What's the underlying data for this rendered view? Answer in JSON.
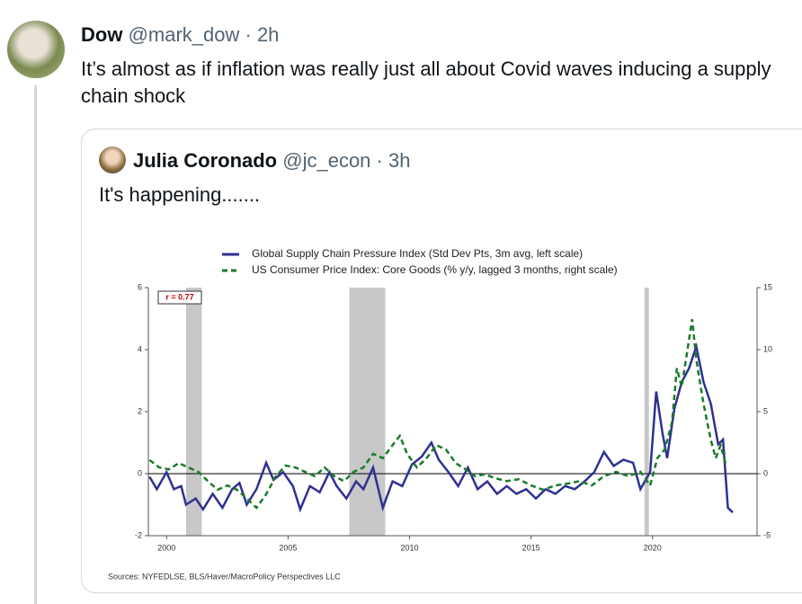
{
  "tweet": {
    "name": "Dow",
    "handle": "@mark_dow · 2h",
    "text": "It’s almost as if inflation was really just all about Covid waves inducing a supply chain shock"
  },
  "quote": {
    "name": "Julia Coronado",
    "handle": "@jc_econ · 3h",
    "text": "It's happening......."
  },
  "chart_data": {
    "type": "line",
    "annotation": "r = 0.77",
    "source": "Sources:  NYFEDLSE, BLS/Haver/MacroPolicy Perspectives LLC",
    "xlim": [
      1999.25,
      2024.3
    ],
    "xticks": [
      2000,
      2005,
      2010,
      2015,
      2020
    ],
    "ylim": [
      -2,
      6
    ],
    "yticks": [
      -2,
      0,
      2,
      4,
      6
    ],
    "y2lim": [
      -5,
      15
    ],
    "y2ticks": [
      -5,
      0,
      5,
      10,
      15
    ],
    "recessions": [
      [
        2000.8,
        2001.45
      ],
      [
        2007.52,
        2009.0
      ],
      [
        2019.67,
        2019.85
      ]
    ],
    "series": [
      {
        "name": "Global Supply Chain Pressure Index (Std Dev Pts, 3m avg, left scale)",
        "color": "#2e3192",
        "axis": "y",
        "x": [
          1999.3,
          1999.6,
          2000.0,
          2000.3,
          2000.6,
          2000.8,
          2001.2,
          2001.5,
          2001.9,
          2002.3,
          2002.7,
          2003.0,
          2003.3,
          2003.7,
          2004.1,
          2004.4,
          2004.8,
          2005.2,
          2005.5,
          2005.9,
          2006.3,
          2006.7,
          2007.0,
          2007.4,
          2007.8,
          2008.1,
          2008.5,
          2008.9,
          2009.3,
          2009.7,
          2010.1,
          2010.5,
          2010.9,
          2011.2,
          2011.6,
          2012.0,
          2012.4,
          2012.8,
          2013.2,
          2013.6,
          2014.0,
          2014.4,
          2014.8,
          2015.2,
          2015.6,
          2016.0,
          2016.4,
          2016.8,
          2017.2,
          2017.6,
          2018.0,
          2018.4,
          2018.8,
          2019.2,
          2019.5,
          2019.9,
          2020.15,
          2020.4,
          2020.6,
          2020.9,
          2021.2,
          2021.5,
          2021.8,
          2022.1,
          2022.4,
          2022.7,
          2022.9,
          2023.1,
          2023.3
        ],
        "values": [
          -0.1,
          -0.5,
          0.05,
          -0.5,
          -0.4,
          -1.0,
          -0.8,
          -1.15,
          -0.65,
          -1.1,
          -0.5,
          -0.3,
          -1.0,
          -0.5,
          0.35,
          -0.2,
          0.05,
          -0.4,
          -1.15,
          -0.4,
          -0.6,
          0.05,
          -0.4,
          -0.8,
          -0.25,
          -0.5,
          0.2,
          -1.1,
          -0.25,
          -0.4,
          0.3,
          0.55,
          1.0,
          0.45,
          0.05,
          -0.4,
          0.2,
          -0.5,
          -0.25,
          -0.65,
          -0.4,
          -0.65,
          -0.5,
          -0.8,
          -0.5,
          -0.65,
          -0.4,
          -0.5,
          -0.25,
          0.05,
          0.7,
          0.25,
          0.45,
          0.35,
          -0.5,
          0.05,
          2.65,
          1.35,
          0.5,
          2.1,
          2.95,
          3.4,
          4.1,
          2.95,
          2.25,
          0.95,
          1.1,
          -1.1,
          -1.25
        ]
      },
      {
        "name": "US Consumer Price Index: Core Goods (% y/y, lagged 3 months, right scale)",
        "color": "#1a7a2a",
        "axis": "y2",
        "x": [
          1999.3,
          1999.7,
          2000.1,
          2000.5,
          2000.9,
          2001.3,
          2001.7,
          2002.1,
          2002.5,
          2002.9,
          2003.3,
          2003.7,
          2004.1,
          2004.5,
          2004.9,
          2005.3,
          2005.7,
          2006.1,
          2006.5,
          2006.9,
          2007.3,
          2007.7,
          2008.1,
          2008.5,
          2008.9,
          2009.3,
          2009.6,
          2009.9,
          2010.3,
          2010.7,
          2011.1,
          2011.5,
          2011.9,
          2012.3,
          2012.7,
          2013.1,
          2013.5,
          2014.0,
          2014.5,
          2015.0,
          2015.5,
          2016.0,
          2016.5,
          2017.0,
          2017.5,
          2018.0,
          2018.5,
          2019.0,
          2019.5,
          2019.9,
          2020.2,
          2020.5,
          2020.8,
          2021.0,
          2021.2,
          2021.63,
          2021.8,
          2022.1,
          2022.4,
          2022.6,
          2022.8,
          2023.0
        ],
        "values": [
          1.1,
          0.5,
          0.35,
          0.85,
          0.5,
          0.15,
          -0.6,
          -1.3,
          -0.95,
          -1.3,
          -2.0,
          -2.75,
          -1.65,
          -0.2,
          0.65,
          0.5,
          0.15,
          -0.2,
          0.5,
          -0.2,
          -0.6,
          0.15,
          0.5,
          1.6,
          1.25,
          2.3,
          3.05,
          1.6,
          0.5,
          1.25,
          2.3,
          1.95,
          0.85,
          0.35,
          -0.2,
          -0.05,
          -0.35,
          -0.6,
          -0.45,
          -0.95,
          -1.3,
          -0.95,
          -0.8,
          -0.6,
          -0.95,
          -0.2,
          0.15,
          -0.2,
          0.15,
          -0.95,
          1.25,
          1.95,
          4.15,
          8.5,
          7.0,
          12.45,
          9.2,
          5.6,
          2.7,
          1.25,
          2.3,
          0.85
        ]
      }
    ]
  }
}
